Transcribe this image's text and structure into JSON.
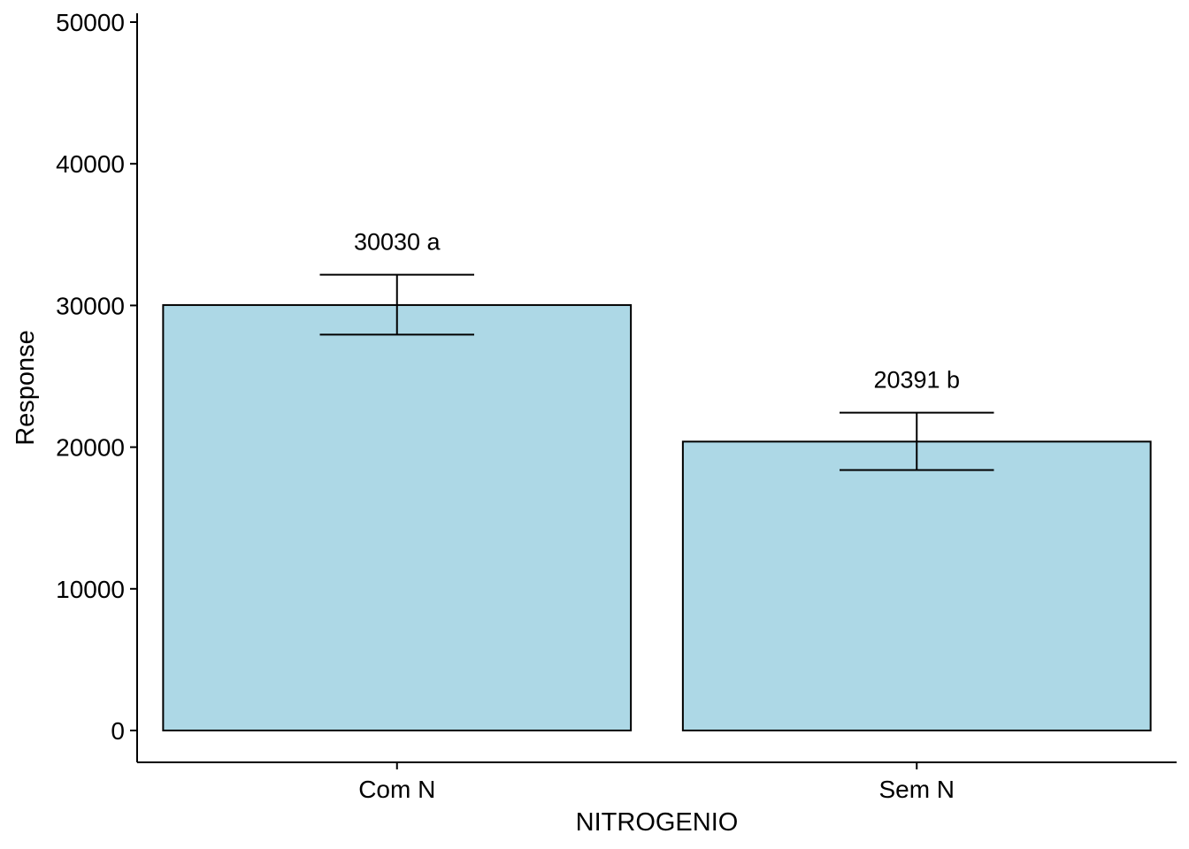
{
  "chart_data": {
    "type": "bar",
    "title": "",
    "xlabel": "NITROGENIO",
    "ylabel": "Response",
    "categories": [
      "Com N",
      "Sem N"
    ],
    "values": [
      30030,
      20391
    ],
    "error_low": [
      27940,
      18380
    ],
    "error_high": [
      32170,
      22430
    ],
    "bar_labels": [
      "30030 a",
      "20391 b"
    ],
    "ylim": [
      0,
      50000
    ],
    "yticks": [
      0,
      10000,
      20000,
      30000,
      40000,
      50000
    ],
    "ytick_labels": [
      "0",
      "10000",
      "20000",
      "30000",
      "40000",
      "50000"
    ],
    "grid": false,
    "legend": "none",
    "bar_fill": "#add8e6",
    "bar_stroke": "#000000"
  }
}
